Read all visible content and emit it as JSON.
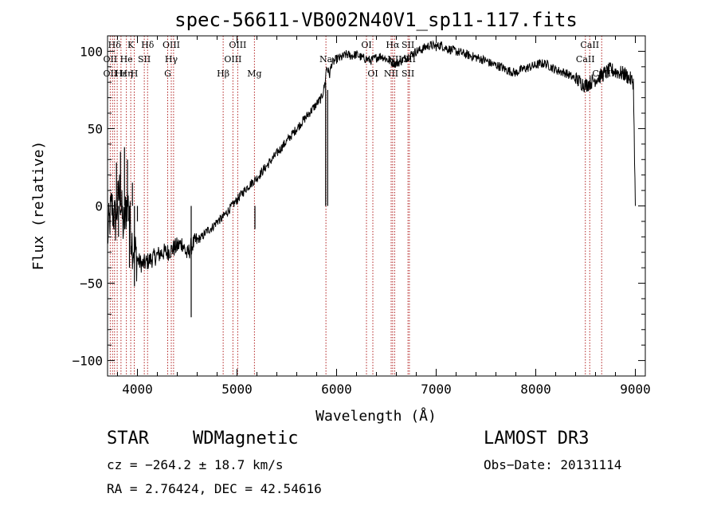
{
  "chart_data": {
    "type": "line",
    "title": "spec-56611-VB002N40V1_sp11-117.fits",
    "xlabel": "Wavelength (Å)",
    "ylabel": "Flux (relative)",
    "xlim": [
      3700,
      9100
    ],
    "ylim": [
      -110,
      110
    ],
    "x_ticks": [
      4000,
      5000,
      6000,
      7000,
      8000,
      9000
    ],
    "x_tick_labels": [
      "4000",
      "5000",
      "6000",
      "7000",
      "8000",
      "9000"
    ],
    "y_ticks": [
      -100,
      -50,
      0,
      50,
      100
    ],
    "y_tick_labels": [
      "−100",
      "−50",
      "0",
      "50",
      "100"
    ],
    "series": [
      {
        "name": "spectrum",
        "x": [
          3700,
          3740,
          3780,
          3820,
          3860,
          3900,
          3950,
          4000,
          4050,
          4100,
          4150,
          4200,
          4250,
          4300,
          4350,
          4400,
          4450,
          4500,
          4540,
          4600,
          4650,
          4700,
          4750,
          4800,
          4850,
          4900,
          4950,
          5000,
          5050,
          5100,
          5150,
          5200,
          5250,
          5300,
          5350,
          5400,
          5450,
          5500,
          5550,
          5600,
          5650,
          5700,
          5750,
          5800,
          5850,
          5880,
          5900,
          5930,
          5950,
          6000,
          6050,
          6100,
          6150,
          6200,
          6250,
          6300,
          6350,
          6400,
          6450,
          6500,
          6550,
          6600,
          6650,
          6700,
          6750,
          6800,
          6850,
          6900,
          6950,
          7000,
          7050,
          7100,
          7150,
          7200,
          7250,
          7300,
          7350,
          7400,
          7450,
          7500,
          7550,
          7600,
          7650,
          7700,
          7750,
          7800,
          7850,
          7900,
          7950,
          8000,
          8050,
          8100,
          8150,
          8200,
          8250,
          8300,
          8350,
          8400,
          8450,
          8500,
          8550,
          8600,
          8650,
          8700,
          8750,
          8800,
          8850,
          8900,
          8950,
          8980,
          9000
        ],
        "y": [
          -20,
          0,
          -10,
          10,
          -15,
          5,
          -25,
          -35,
          -38,
          -36,
          -34,
          -32,
          -30,
          -30,
          -28,
          -26,
          -24,
          -32,
          -26,
          -22,
          -20,
          -16,
          -14,
          -10,
          -8,
          -4,
          0,
          4,
          8,
          12,
          15,
          18,
          22,
          26,
          30,
          34,
          38,
          42,
          46,
          50,
          54,
          58,
          62,
          66,
          70,
          78,
          90,
          85,
          92,
          95,
          96,
          98,
          97,
          98,
          96,
          95,
          94,
          96,
          97,
          95,
          93,
          92,
          94,
          96,
          98,
          100,
          101,
          103,
          104,
          103,
          104,
          102,
          101,
          100,
          99,
          98,
          97,
          96,
          95,
          94,
          92,
          91,
          90,
          88,
          87,
          86,
          88,
          89,
          90,
          91,
          92,
          92,
          90,
          88,
          87,
          86,
          84,
          82,
          80,
          78,
          80,
          82,
          84,
          86,
          88,
          87,
          86,
          85,
          82,
          80,
          0
        ]
      },
      {
        "name": "spikes",
        "x": [
          3790,
          3810,
          3830,
          3850,
          3870,
          3885,
          3900,
          3920,
          3950,
          3970,
          4000,
          4540,
          5180,
          5890,
          5910
        ],
        "y": [
          28,
          -20,
          35,
          -5,
          38,
          -15,
          30,
          -40,
          15,
          -52,
          -10,
          -72,
          -15,
          80,
          75
        ]
      }
    ],
    "line_labels": [
      {
        "text": "Hδ",
        "x": 3770,
        "row": 1
      },
      {
        "text": "K",
        "x": 3933,
        "row": 1
      },
      {
        "text": "Hδ",
        "x": 4102,
        "row": 1
      },
      {
        "text": "OIII",
        "x": 4340,
        "row": 1
      },
      {
        "text": "OIII",
        "x": 5007,
        "row": 1
      },
      {
        "text": "OI",
        "x": 6300,
        "row": 1
      },
      {
        "text": "Hα",
        "x": 6563,
        "row": 1
      },
      {
        "text": "SII",
        "x": 6717,
        "row": 1
      },
      {
        "text": "CaII",
        "x": 8542,
        "row": 1
      },
      {
        "text": "OII",
        "x": 3727,
        "row": 2
      },
      {
        "text": "He",
        "x": 3889,
        "row": 2
      },
      {
        "text": "SII",
        "x": 4069,
        "row": 2
      },
      {
        "text": "Hγ",
        "x": 4340,
        "row": 2
      },
      {
        "text": "OIII",
        "x": 4959,
        "row": 2
      },
      {
        "text": "Na",
        "x": 5893,
        "row": 2
      },
      {
        "text": "NII",
        "x": 6583,
        "row": 2
      },
      {
        "text": "SII",
        "x": 6731,
        "row": 2
      },
      {
        "text": "CaII",
        "x": 8498,
        "row": 2
      },
      {
        "text": "OII",
        "x": 3727,
        "row": 3
      },
      {
        "text": "Hε",
        "x": 3835,
        "row": 3
      },
      {
        "text": "Hη",
        "x": 3889,
        "row": 3
      },
      {
        "text": "H",
        "x": 3968,
        "row": 3
      },
      {
        "text": "G",
        "x": 4304,
        "row": 3
      },
      {
        "text": "Hβ",
        "x": 4861,
        "row": 3
      },
      {
        "text": "Mg",
        "x": 5175,
        "row": 3
      },
      {
        "text": "OI",
        "x": 6364,
        "row": 3
      },
      {
        "text": "NII",
        "x": 6548,
        "row": 3
      },
      {
        "text": "SII",
        "x": 6717,
        "row": 3
      },
      {
        "text": "CaII",
        "x": 8662,
        "row": 3
      }
    ],
    "line_markers": [
      3727,
      3750,
      3770,
      3797,
      3835,
      3889,
      3933,
      3968,
      4069,
      4102,
      4304,
      4340,
      4363,
      4861,
      4959,
      5007,
      5175,
      5893,
      6300,
      6364,
      6548,
      6563,
      6583,
      6717,
      6731,
      8498,
      8542,
      8662
    ],
    "line_color": "#000000",
    "marker_color": "#b22222"
  },
  "info": {
    "class": "STAR",
    "subclass": "WDMagnetic",
    "survey": "LAMOST DR3",
    "cz": "cz = −264.2 ± 18.7 km/s",
    "obs_date": "Obs−Date: 20131114",
    "coords": "RA =   2.76424, DEC =  42.54616"
  }
}
